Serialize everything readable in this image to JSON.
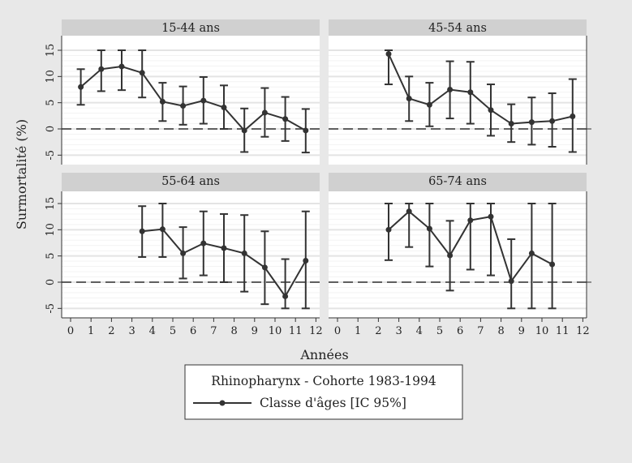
{
  "chart_data": {
    "type": "line",
    "ylabel": "Surmortalité (%)",
    "xlabel": "Années",
    "xlim": [
      0,
      12
    ],
    "ylim": [
      -5,
      15
    ],
    "xticks": [
      "0",
      "1",
      "2",
      "3",
      "4",
      "5",
      "6",
      "7",
      "8",
      "9",
      "10",
      "11",
      "12"
    ],
    "yticks": [
      "-5",
      "0",
      "5",
      "10",
      "15"
    ],
    "reference_line": 0,
    "grid": true,
    "legend": {
      "title": "Rhinopharynx - Cohorte 1983-1994",
      "entry": "Classe d'âges [IC 95%]",
      "placement": "bottom"
    },
    "panels": [
      {
        "title": "15-44 ans",
        "x": [
          0.5,
          1.5,
          2.5,
          3.5,
          4.5,
          5.5,
          6.5,
          7.5,
          8.5,
          9.5,
          10.5,
          11.5
        ],
        "y": [
          8,
          11.4,
          11.9,
          10.7,
          5.2,
          4.4,
          5.4,
          4.1,
          -0.3,
          3.1,
          1.9,
          -0.3
        ],
        "lo": [
          4.6,
          7.2,
          7.4,
          6,
          1.5,
          0.8,
          1,
          0,
          -4.4,
          -1.5,
          -2.3,
          -4.5
        ],
        "hi": [
          11.4,
          15,
          15,
          15,
          8.8,
          8.1,
          9.9,
          8.3,
          3.9,
          7.8,
          6.1,
          3.8
        ]
      },
      {
        "title": "45-54 ans",
        "x": [
          2.5,
          3.5,
          4.5,
          5.5,
          6.5,
          7.5,
          8.5,
          9.5,
          10.5,
          11.5
        ],
        "y": [
          14.3,
          5.8,
          4.6,
          7.5,
          7,
          3.6,
          1,
          1.3,
          1.5,
          2.4
        ],
        "lo": [
          8.5,
          1.5,
          0.5,
          2,
          1,
          -1.3,
          -2.5,
          -3,
          -3.4,
          -4.4
        ],
        "hi": [
          15,
          10,
          8.8,
          12.9,
          12.8,
          8.5,
          4.7,
          6,
          6.8,
          9.5
        ]
      },
      {
        "title": "55-64 ans",
        "x": [
          3.5,
          4.5,
          5.5,
          6.5,
          7.5,
          8.5,
          9.5,
          10.5,
          11.5
        ],
        "y": [
          9.7,
          10.1,
          5.5,
          7.4,
          6.5,
          5.5,
          2.8,
          -2.7,
          4.1
        ],
        "lo": [
          4.8,
          4.8,
          0.7,
          1.3,
          0,
          -1.8,
          -4.2,
          -5,
          -5
        ],
        "hi": [
          14.5,
          15,
          10.5,
          13.5,
          13,
          12.8,
          9.7,
          4.4,
          13.5
        ]
      },
      {
        "title": "65-74 ans",
        "x": [
          2.5,
          3.5,
          4.5,
          5.5,
          6.5,
          7.5,
          8.5,
          9.5,
          10.5
        ],
        "y": [
          10,
          13.5,
          10.2,
          5.1,
          11.8,
          12.5,
          0.2,
          5.5,
          3.4
        ],
        "lo": [
          4.2,
          6.7,
          3,
          -1.6,
          2.4,
          1.3,
          -5,
          -5,
          -5
        ],
        "hi": [
          15,
          15,
          15,
          11.7,
          15,
          15,
          8.2,
          15,
          15
        ]
      }
    ]
  }
}
